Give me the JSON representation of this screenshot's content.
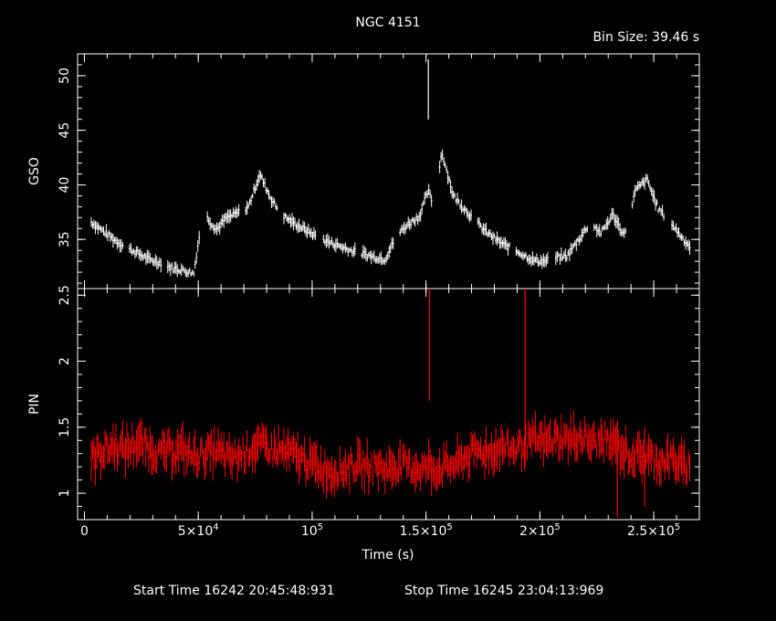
{
  "chart_data": {
    "type": "line",
    "title": "NGC 4151",
    "subtitle": "Bin Size: 39.46 s",
    "xlabel": "Time (s)",
    "xlim": [
      -3000,
      270000
    ],
    "x_ticks": [
      {
        "value": 0,
        "label": "0",
        "sup": ""
      },
      {
        "value": 50000,
        "label": "5×10",
        "sup": "4"
      },
      {
        "value": 100000,
        "label": "10",
        "sup": "5"
      },
      {
        "value": 150000,
        "label": "1.5×10",
        "sup": "5"
      },
      {
        "value": 200000,
        "label": "2×10",
        "sup": "5"
      },
      {
        "value": 250000,
        "label": "2.5×10",
        "sup": "5"
      }
    ],
    "footer": {
      "start": "Start Time 16242  20:45:48:931",
      "stop": "Stop Time 16245  23:04:13:969"
    },
    "panels": [
      {
        "name": "GSO",
        "ylabel": "GSO",
        "color": "#ffffff",
        "ylim": [
          30.5,
          52
        ],
        "y_ticks": [
          35,
          40,
          45,
          50
        ],
        "y_tick_labels": [
          "35",
          "40",
          "45",
          "50"
        ],
        "x": [
          3000,
          8000,
          13000,
          18000,
          23000,
          28000,
          33000,
          38000,
          43000,
          48000,
          52000,
          58000,
          62000,
          67000,
          72000,
          77000,
          82000,
          87000,
          92000,
          97000,
          102000,
          107000,
          112000,
          117000,
          122000,
          127000,
          132000,
          137000,
          142000,
          147000,
          151000,
          153000,
          157000,
          162000,
          167000,
          172000,
          177000,
          182000,
          187000,
          192000,
          197000,
          202000,
          207000,
          212000,
          217000,
          222000,
          227000,
          232000,
          237000,
          242000,
          247000,
          252000,
          257000,
          262000,
          266000
        ],
        "y": [
          36.6,
          35.8,
          35.0,
          34.3,
          33.8,
          33.2,
          32.9,
          32.4,
          32.2,
          31.9,
          37.5,
          35.9,
          36.9,
          37.4,
          38.0,
          41.0,
          38.7,
          37.2,
          36.5,
          35.9,
          35.3,
          34.8,
          34.4,
          34.0,
          33.7,
          33.4,
          33.2,
          35.3,
          36.4,
          37.1,
          39.5,
          38.2,
          43.0,
          39.0,
          37.8,
          36.6,
          35.6,
          34.8,
          34.2,
          33.7,
          33.1,
          33.0,
          33.3,
          33.5,
          35.0,
          36.5,
          35.6,
          37.3,
          35.4,
          39.5,
          40.5,
          37.8,
          36.7,
          35.3,
          34.3
        ],
        "spikes": [
          {
            "x": 151000,
            "y": 51.5,
            "low": 46
          }
        ]
      },
      {
        "name": "PIN",
        "ylabel": "PIN",
        "color": "#ff0000",
        "ylim": [
          0.8,
          2.55
        ],
        "y_ticks": [
          1,
          1.5,
          2,
          2.5
        ],
        "y_tick_labels": [
          "1",
          "1.5",
          "2",
          "2.5"
        ],
        "x": [
          3000,
          8000,
          13000,
          18000,
          23000,
          28000,
          33000,
          38000,
          43000,
          48000,
          53000,
          58000,
          63000,
          68000,
          73000,
          78000,
          83000,
          88000,
          93000,
          98000,
          103000,
          108000,
          113000,
          118000,
          123000,
          128000,
          133000,
          138000,
          143000,
          148000,
          151000,
          153000,
          158000,
          163000,
          168000,
          173000,
          178000,
          183000,
          188000,
          193000,
          198000,
          203000,
          208000,
          213000,
          218000,
          223000,
          228000,
          233000,
          238000,
          243000,
          248000,
          253000,
          258000,
          263000,
          266000
        ],
        "y": [
          1.25,
          1.32,
          1.36,
          1.33,
          1.38,
          1.35,
          1.3,
          1.32,
          1.33,
          1.28,
          1.3,
          1.32,
          1.26,
          1.28,
          1.34,
          1.36,
          1.33,
          1.31,
          1.28,
          1.24,
          1.2,
          1.16,
          1.18,
          1.22,
          1.2,
          1.21,
          1.18,
          1.22,
          1.2,
          1.18,
          1.21,
          1.18,
          1.2,
          1.22,
          1.28,
          1.32,
          1.31,
          1.35,
          1.33,
          1.37,
          1.4,
          1.38,
          1.42,
          1.4,
          1.43,
          1.38,
          1.4,
          1.36,
          1.3,
          1.28,
          1.27,
          1.24,
          1.26,
          1.2,
          1.22
        ],
        "spikes": [
          {
            "x": 151500,
            "y": 2.55,
            "low": 1.7
          },
          {
            "x": 193500,
            "y": 2.55,
            "low": 1.2
          },
          {
            "x": 234000,
            "y": 1.55,
            "low": 0.82
          },
          {
            "x": 246000,
            "y": 1.5,
            "low": 0.9
          }
        ]
      }
    ]
  }
}
